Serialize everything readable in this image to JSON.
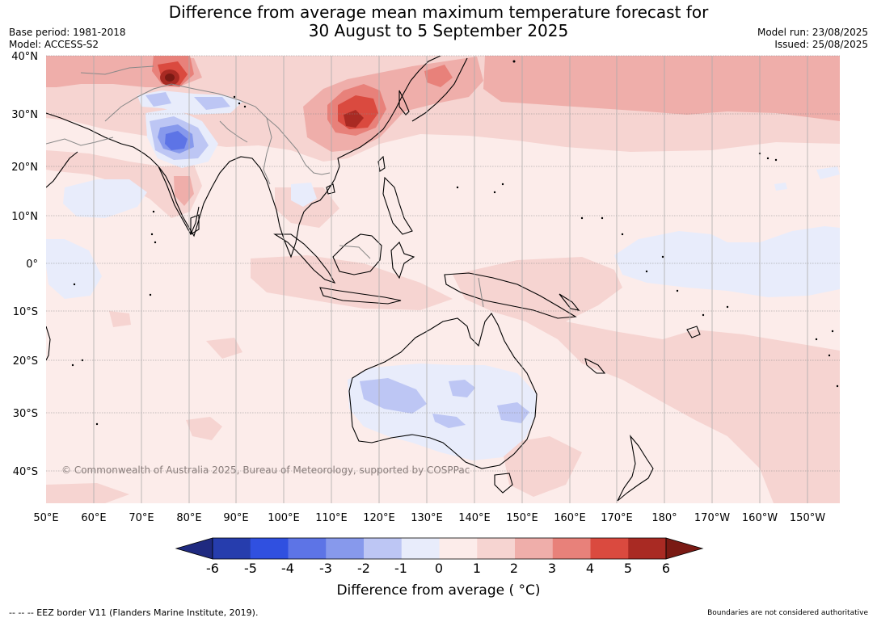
{
  "title": {
    "line1": "Difference from average mean maximum temperature forecast for",
    "line2": "30 August to 5 September 2025"
  },
  "meta_left": {
    "base_period": "Base period: 1981-2018",
    "model": "Model: ACCESS-S2"
  },
  "meta_right": {
    "model_run": "Model run: 23/08/2025",
    "issued": "Issued: 25/08/2025"
  },
  "map": {
    "lat_labels": [
      "40°N",
      "30°N",
      "20°N",
      "10°N",
      "0°",
      "10°S",
      "20°S",
      "30°S",
      "40°S"
    ],
    "lon_labels": [
      "50°E",
      "60°E",
      "70°E",
      "80°E",
      "90°E",
      "100°E",
      "110°E",
      "120°E",
      "130°E",
      "140°E",
      "150°E",
      "160°E",
      "170°E",
      "180°",
      "170°W",
      "160°W",
      "150°W"
    ],
    "copyright": "© Commonwealth of Australia 2025, Bureau of Meteorology, supported by COSPPac"
  },
  "legend": {
    "title": "Difference from average ( °C)",
    "ticks": [
      "-6",
      "-5",
      "-4",
      "-3",
      "-2",
      "-1",
      "0",
      "1",
      "2",
      "3",
      "4",
      "5",
      "6"
    ],
    "colors": [
      "#1f2a80",
      "#263dad",
      "#3050e0",
      "#5d74e6",
      "#8799ec",
      "#bdc6f4",
      "#e8ecfb",
      "#fcecea",
      "#f6d4d1",
      "#efaeaa",
      "#e8817a",
      "#da4a3f",
      "#a92a23",
      "#7a1a14"
    ]
  },
  "footer": {
    "eez": "--  --  -- EEZ border V11 (Flanders Marine Institute, 2019).",
    "disclaimer": "Boundaries are not considered authoritative"
  }
}
